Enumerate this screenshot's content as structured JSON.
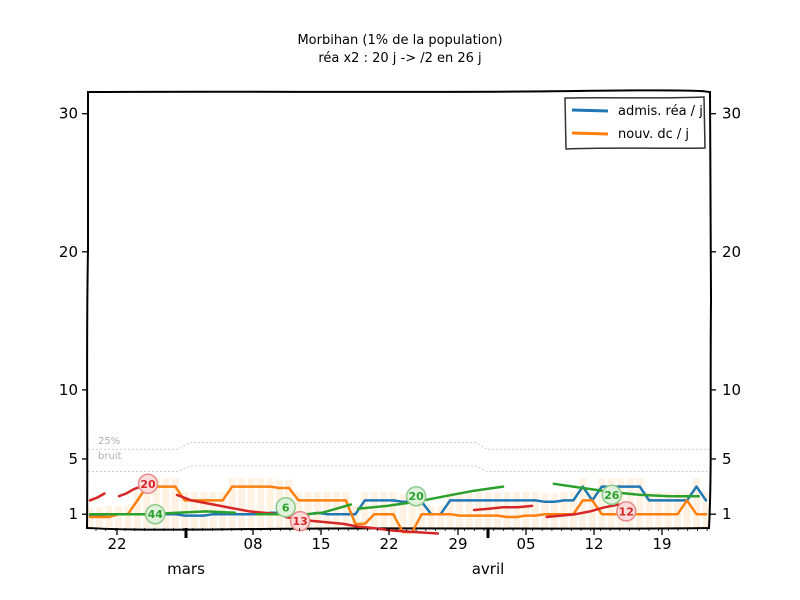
{
  "chart_data": {
    "type": "line",
    "title": "Morbihan (1% de la population)",
    "subtitle": "réa x2 : 20 j -> /2 en 26 j",
    "xlabel": "",
    "ylabel": "",
    "ylim": [
      0,
      32
    ],
    "y_ticks": [
      1,
      5,
      10,
      20,
      30
    ],
    "x_tick_labels": [
      "22",
      "08",
      "15",
      "22",
      "29",
      "05",
      "12",
      "19"
    ],
    "month_labels": [
      "mars",
      "avril"
    ],
    "legend_position": "top-right",
    "noise_labels": [
      "25%",
      "bruit"
    ],
    "x": [
      0,
      1,
      2,
      3,
      4,
      5,
      6,
      7,
      8,
      9,
      10,
      11,
      12,
      13,
      14,
      15,
      16,
      17,
      18,
      19,
      20,
      21,
      22,
      23,
      24,
      25,
      26,
      27,
      28,
      29,
      30,
      31,
      32,
      33,
      34,
      35,
      36,
      37,
      38,
      39,
      40,
      41,
      42,
      43,
      44,
      45,
      46,
      47,
      48,
      49,
      50,
      51,
      52,
      53,
      54,
      55,
      56,
      57,
      58,
      59,
      60,
      61,
      62,
      63,
      64,
      65
    ],
    "series": [
      {
        "name": "admis. réa / j",
        "color": "#1f77b4",
        "values": [
          0.9,
          0.9,
          1.0,
          1.0,
          1.0,
          1.0,
          1.0,
          1.0,
          1.0,
          1.0,
          0.9,
          0.9,
          0.9,
          1.0,
          1.0,
          1.0,
          1.0,
          1.0,
          1.0,
          1.1,
          1.1,
          1.0,
          1.0,
          1.0,
          1.1,
          1.0,
          1.0,
          1.0,
          1.0,
          2.0,
          2.0,
          2.0,
          2.0,
          1.9,
          1.9,
          1.9,
          1.0,
          1.0,
          2.0,
          2.0,
          2.0,
          2.0,
          2.0,
          2.0,
          2.0,
          2.0,
          2.0,
          2.0,
          1.9,
          1.9,
          2.0,
          2.0,
          3.0,
          2.0,
          3.0,
          3.0,
          3.0,
          3.0,
          3.0,
          2.0,
          2.0,
          2.0,
          2.0,
          2.0,
          3.0,
          2.0
        ]
      },
      {
        "name": "nouv. dc / j",
        "color": "#ff7f0e",
        "values": [
          0.8,
          0.8,
          0.8,
          1.0,
          1.0,
          2.0,
          3.0,
          3.0,
          3.0,
          3.0,
          2.0,
          2.0,
          2.0,
          2.0,
          2.0,
          3.0,
          3.0,
          3.0,
          3.0,
          3.0,
          2.9,
          2.9,
          2.0,
          2.0,
          2.0,
          2.0,
          2.0,
          2.0,
          0.3,
          0.3,
          1.0,
          1.0,
          1.0,
          -0.3,
          -0.3,
          1.0,
          1.0,
          1.0,
          1.0,
          0.9,
          0.9,
          0.9,
          0.9,
          0.9,
          0.8,
          0.8,
          0.9,
          0.9,
          1.0,
          1.0,
          1.0,
          1.0,
          2.0,
          2.0,
          1.0,
          1.0,
          1.0,
          1.0,
          1.0,
          1.0,
          1.0,
          1.0,
          1.0,
          2.0,
          1.0,
          1.0
        ]
      }
    ],
    "trend_segments": [
      {
        "color": "#d62728",
        "points": [
          [
            0,
            2.0
          ],
          [
            1,
            2.2
          ],
          [
            2,
            2.5
          ]
        ]
      },
      {
        "color": "#d62728",
        "points": [
          [
            4,
            2.3
          ],
          [
            5,
            2.5
          ],
          [
            6,
            2.8
          ],
          [
            7,
            3.0
          ],
          [
            8,
            3.1
          ]
        ]
      },
      {
        "color": "#d62728",
        "points": [
          [
            12,
            2.4
          ],
          [
            14,
            2.0
          ],
          [
            16,
            1.8
          ],
          [
            18,
            1.6
          ],
          [
            20,
            1.4
          ],
          [
            22,
            1.2
          ],
          [
            24,
            1.1
          ],
          [
            26,
            1.0
          ]
        ]
      },
      {
        "color": "#d62728",
        "points": [
          [
            27,
            0.8
          ],
          [
            29,
            0.6
          ],
          [
            31,
            0.5
          ],
          [
            33,
            0.4
          ],
          [
            35,
            0.3
          ],
          [
            37,
            0.1
          ],
          [
            39,
            0.0
          ],
          [
            42,
            -0.2
          ],
          [
            45,
            -0.3
          ],
          [
            48,
            -0.4
          ]
        ]
      },
      {
        "color": "#d62728",
        "points": [
          [
            53,
            1.3
          ],
          [
            55,
            1.4
          ],
          [
            57,
            1.5
          ],
          [
            59,
            1.5
          ],
          [
            61,
            1.6
          ]
        ]
      },
      {
        "color": "#d62728",
        "points": [
          [
            63,
            0.8
          ],
          [
            65,
            0.9
          ],
          [
            67,
            1.0
          ],
          [
            69,
            1.2
          ],
          [
            71,
            1.5
          ],
          [
            73,
            1.7
          ]
        ]
      },
      {
        "color": "#2ca02c",
        "points": [
          [
            0,
            1.0
          ],
          [
            4,
            1.0
          ],
          [
            8,
            1.0
          ],
          [
            12,
            1.1
          ],
          [
            16,
            1.2
          ],
          [
            20,
            1.1
          ]
        ]
      },
      {
        "color": "#2ca02c",
        "points": [
          [
            23,
            1.0
          ],
          [
            25,
            1.0
          ],
          [
            27,
            1.0
          ]
        ]
      },
      {
        "color": "#2ca02c",
        "points": [
          [
            28,
            0.9
          ],
          [
            30,
            1.0
          ],
          [
            32,
            1.1
          ],
          [
            34,
            1.4
          ],
          [
            36,
            1.7
          ]
        ]
      },
      {
        "color": "#2ca02c",
        "points": [
          [
            37,
            1.4
          ],
          [
            41,
            1.6
          ],
          [
            45,
            1.9
          ],
          [
            49,
            2.3
          ],
          [
            53,
            2.7
          ],
          [
            57,
            3.0
          ]
        ]
      },
      {
        "color": "#2ca02c",
        "points": [
          [
            64,
            3.2
          ],
          [
            68,
            2.9
          ],
          [
            72,
            2.6
          ],
          [
            76,
            2.4
          ],
          [
            80,
            2.3
          ],
          [
            84,
            2.3
          ]
        ]
      }
    ],
    "badges": [
      {
        "label": "20",
        "kind": "red",
        "x": 8,
        "y": 3.2
      },
      {
        "label": "44",
        "kind": "green",
        "x": 9,
        "y": 1.0
      },
      {
        "label": "6",
        "kind": "green",
        "x": 27,
        "y": 1.5
      },
      {
        "label": "13",
        "kind": "red",
        "x": 29,
        "y": 0.5
      },
      {
        "label": "20",
        "kind": "green",
        "x": 45,
        "y": 2.3
      },
      {
        "label": "26",
        "kind": "green",
        "x": 72,
        "y": 2.4
      },
      {
        "label": "12",
        "kind": "red",
        "x": 74,
        "y": 1.2
      }
    ]
  }
}
